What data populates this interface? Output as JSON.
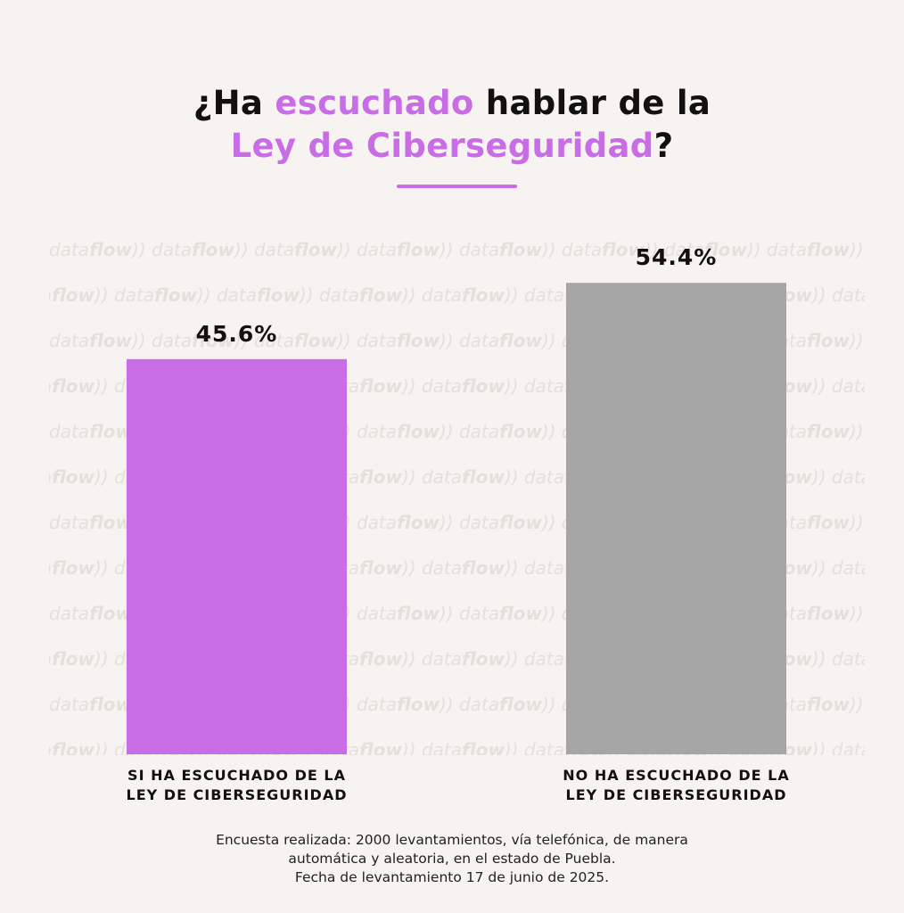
{
  "header": {
    "title_line1_part1": "¿Ha ",
    "title_line1_highlight": "escuchado",
    "title_line1_part2": " hablar de la",
    "title_line2_highlight": "Ley de Ciberseguridad",
    "title_line2_part2": "?"
  },
  "watermark": {
    "brand_light": "data",
    "brand_bold": "flow"
  },
  "chart_data": {
    "type": "bar",
    "categories": [
      "SI HA ESCUCHADO DE LA LEY DE CIBERSEGURIDAD",
      "NO HA ESCUCHADO DE LA LEY DE CIBERSEGURIDAD"
    ],
    "category_lines": [
      [
        "SI HA ESCUCHADO DE LA",
        "LEY DE CIBERSEGURIDAD"
      ],
      [
        "NO HA ESCUCHADO DE LA",
        "LEY DE CIBERSEGURIDAD"
      ]
    ],
    "values": [
      45.6,
      54.4
    ],
    "value_labels": [
      "45.6%",
      "54.4%"
    ],
    "colors": [
      "#c86de6",
      "#a6a6a6"
    ],
    "ylim": [
      0,
      60
    ],
    "grid": false,
    "legend": "none"
  },
  "footnote": {
    "line1": "Encuesta realizada: 2000 levantamientos, vía telefónica, de manera",
    "line2": "automática y aleatoria, en el estado de Puebla.",
    "line3": "Fecha de levantamiento 17 de junio de 2025."
  },
  "colors": {
    "accent": "#c86de6",
    "background": "#f7f3f1",
    "text": "#111111"
  }
}
